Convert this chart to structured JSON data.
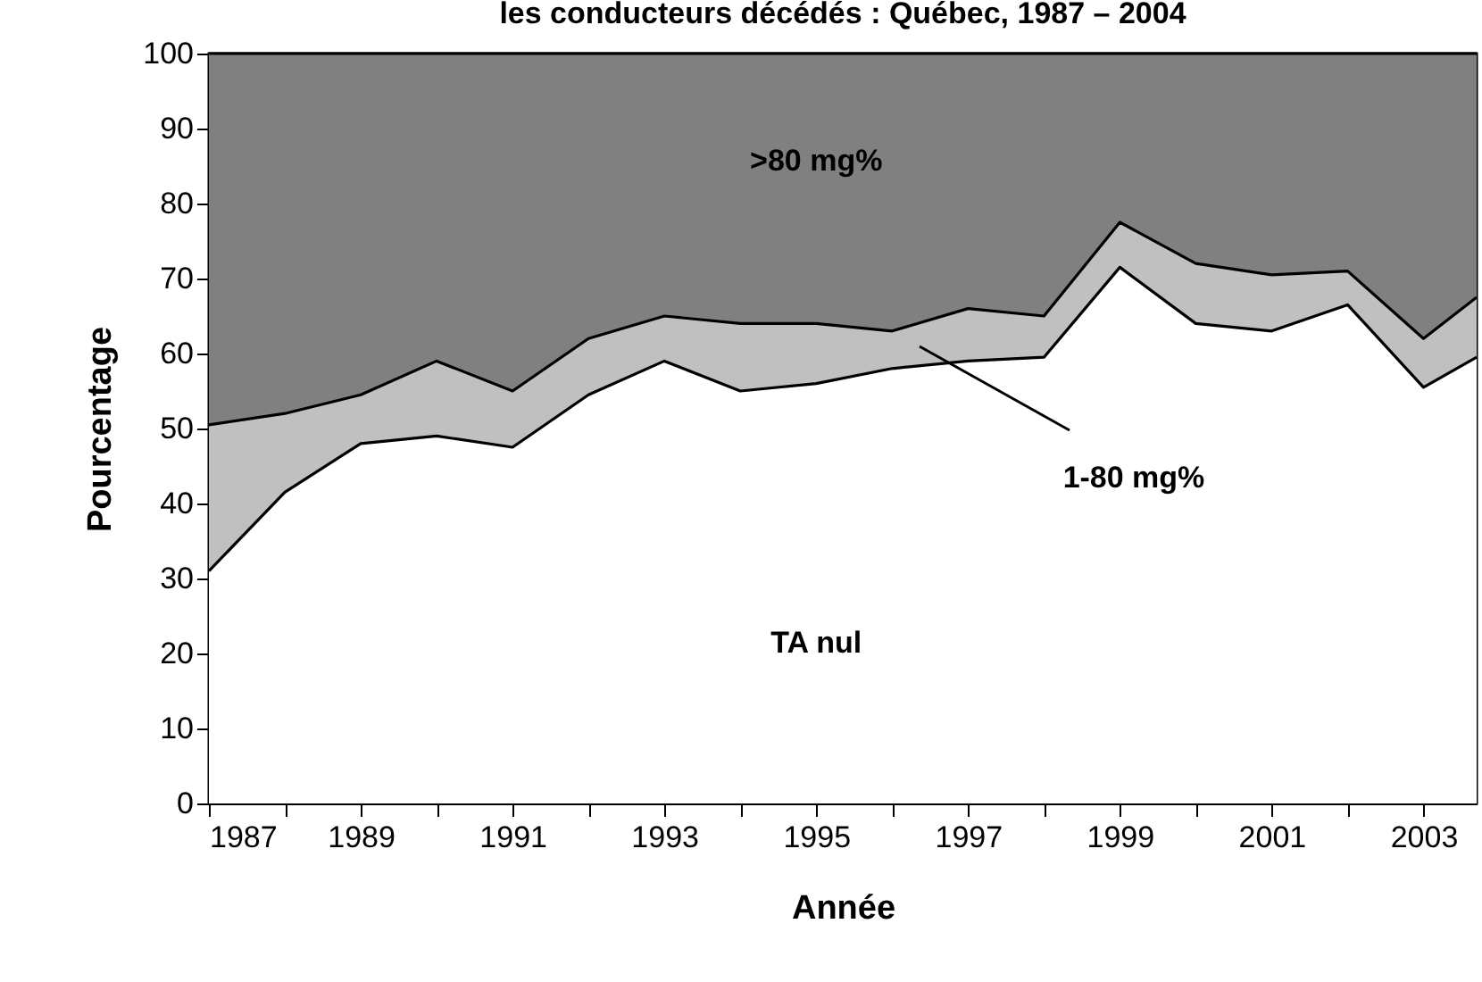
{
  "chart_data": {
    "type": "area",
    "stacked": true,
    "title": "les conducteurs décédés : Québec, 1987 – 2004",
    "xlabel": "Année",
    "ylabel": "Pourcentage",
    "x": [
      1987,
      1988,
      1989,
      1990,
      1991,
      1992,
      1993,
      1994,
      1995,
      1996,
      1997,
      1998,
      1999,
      2000,
      2001,
      2002,
      2003,
      2003.7
    ],
    "series": [
      {
        "name": "TA nul",
        "color": "#ffffff",
        "values": [
          31,
          41.5,
          48,
          49,
          47.5,
          54.5,
          59,
          55,
          56,
          58,
          59,
          59.5,
          71.5,
          64,
          63,
          66.5,
          55.5,
          59.5
        ]
      },
      {
        "color": "#c0c0c0",
        "values": [
          19.5,
          10.5,
          6.5,
          10,
          7.5,
          7.5,
          6,
          9,
          8,
          5,
          7,
          5.5,
          6,
          8,
          7.5,
          4.5,
          6.5,
          8
        ]
      },
      {
        "name": ">80 mg%",
        "color": "#808080",
        "values": [
          49.5,
          48,
          45.5,
          41,
          45,
          38,
          35,
          36,
          36,
          37,
          34,
          35,
          22.5,
          28,
          29.5,
          29,
          38,
          32.5
        ]
      }
    ],
    "annotations": [
      "1-80 mg%"
    ],
    "xlim": [
      1987,
      2003.7
    ],
    "xticks": [
      1987,
      {
        "value": 1988,
        "label": null
      },
      1989,
      {
        "value": 1990,
        "label": null
      },
      1991,
      {
        "value": 1992,
        "label": null
      },
      1993,
      {
        "value": 1994,
        "label": null
      },
      1995,
      {
        "value": 1996,
        "label": null
      },
      1997,
      {
        "value": 1998,
        "label": null
      },
      1999,
      {
        "value": 2000,
        "label": null
      },
      2001,
      {
        "value": 2002,
        "label": null
      },
      2003
    ],
    "ylim": [
      0,
      100
    ],
    "yticks": [
      0,
      10,
      20,
      30,
      40,
      50,
      60,
      70,
      80,
      90,
      100
    ],
    "grid": false,
    "legend": false,
    "marker": "none",
    "line_style": "solid"
  }
}
